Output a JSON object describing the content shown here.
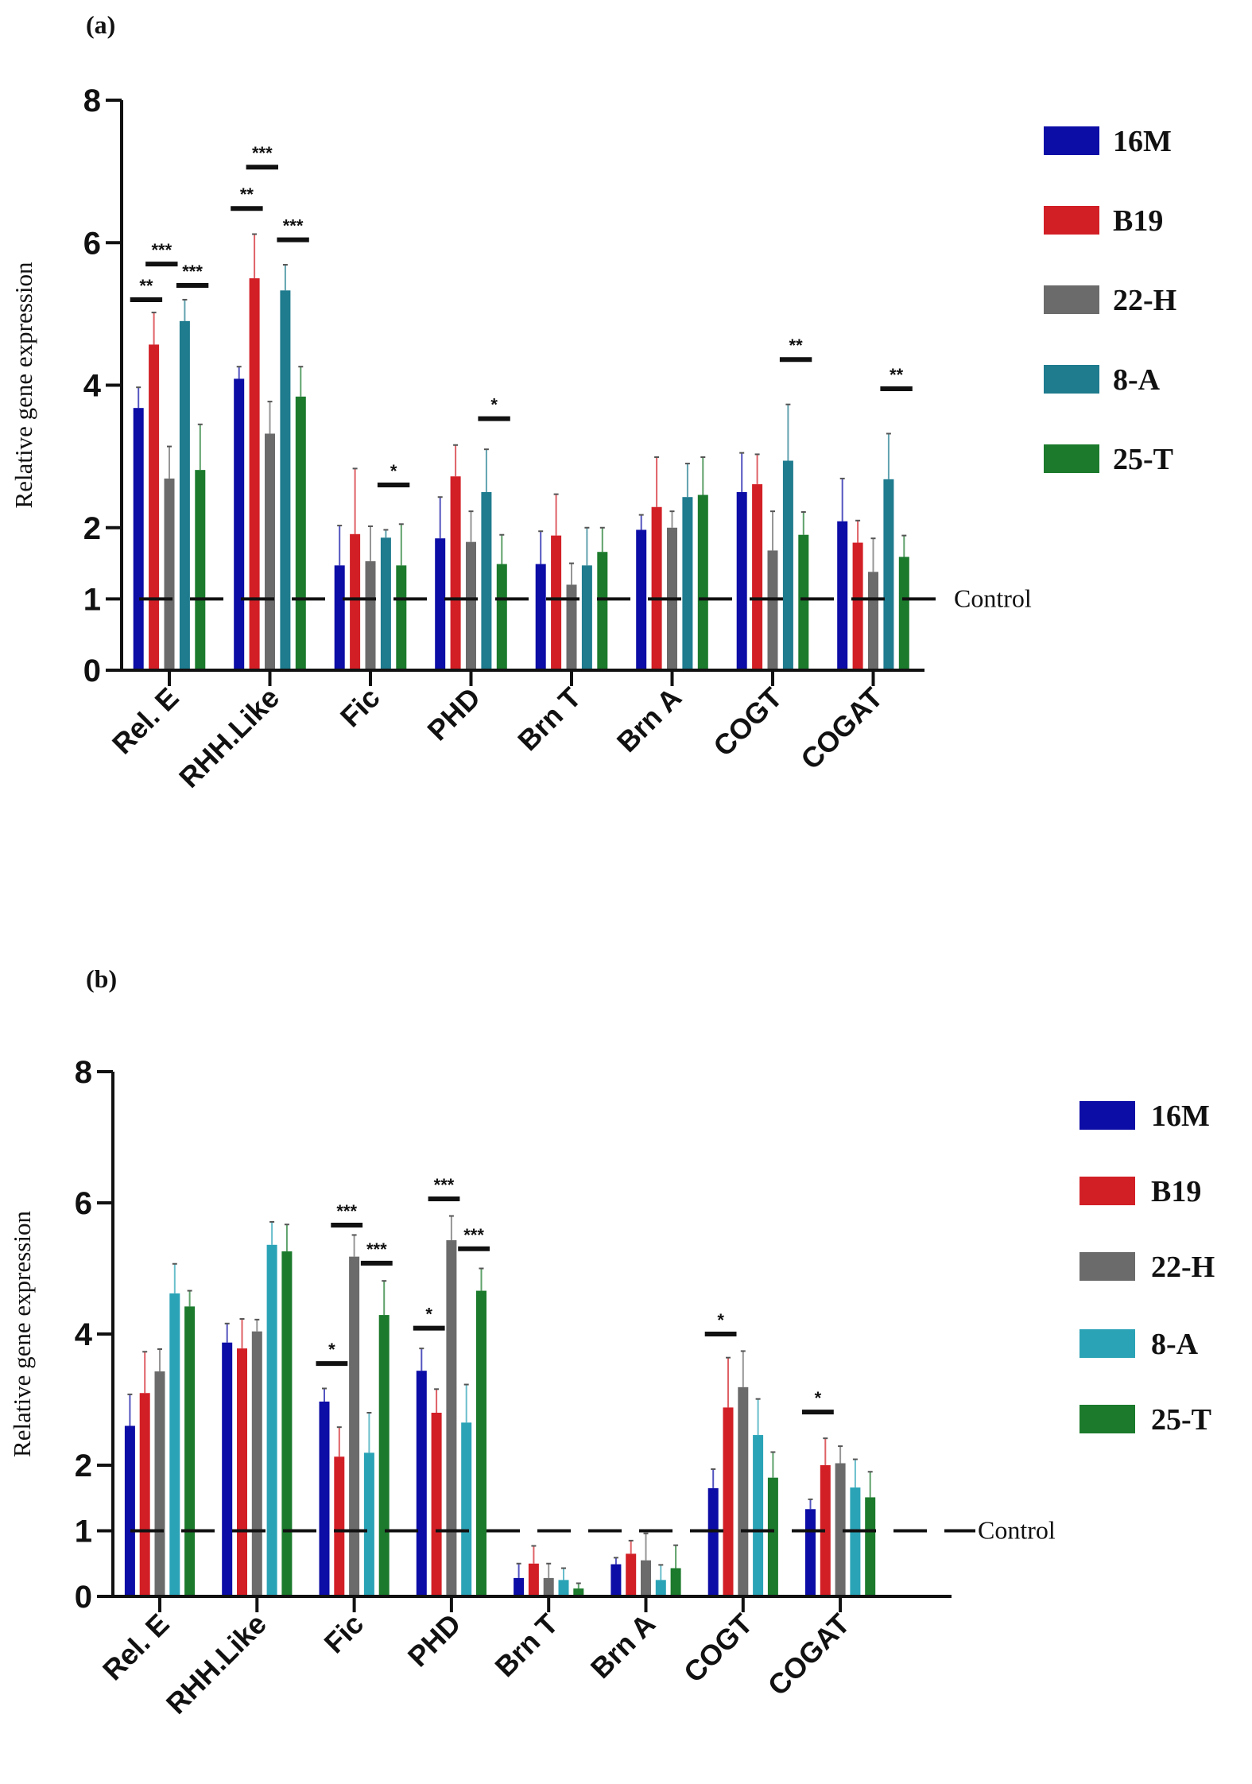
{
  "chart_data": [
    {
      "panel_label": "(a)",
      "type": "bar",
      "ylabel": "Relative gene expression",
      "ylim": [
        0,
        8
      ],
      "yticks": [
        0,
        1,
        2,
        4,
        6,
        8
      ],
      "categories": [
        "Rel. E",
        "RHH.Like",
        "Fic",
        "PHD",
        "Brn T",
        "Brn A",
        "COGT",
        "COGAT"
      ],
      "reference_line": {
        "value": 1,
        "label": "Control",
        "style": "dashed"
      },
      "legend_position": "top-right",
      "series": [
        {
          "name": "16M",
          "color": "#0c0ca6",
          "values": [
            3.68,
            4.09,
            1.47,
            1.85,
            1.49,
            1.97,
            2.5,
            2.09
          ],
          "errors": [
            0.29,
            0.17,
            0.56,
            0.58,
            0.46,
            0.21,
            0.55,
            0.6
          ]
        },
        {
          "name": "B19",
          "color": "#d21f26",
          "values": [
            4.57,
            5.5,
            1.91,
            2.72,
            1.89,
            2.29,
            2.61,
            1.79
          ],
          "errors": [
            0.45,
            0.62,
            0.92,
            0.44,
            0.58,
            0.7,
            0.42,
            0.31
          ]
        },
        {
          "name": "22-H",
          "color": "#6b6b6b",
          "values": [
            2.69,
            3.32,
            1.53,
            1.8,
            1.2,
            2.0,
            1.68,
            1.38
          ],
          "errors": [
            0.45,
            0.45,
            0.49,
            0.43,
            0.3,
            0.23,
            0.55,
            0.47
          ]
        },
        {
          "name": "8-A",
          "color": "#1f7b8e",
          "values": [
            4.9,
            5.33,
            1.86,
            2.5,
            1.47,
            2.43,
            2.94,
            2.68
          ],
          "errors": [
            0.3,
            0.36,
            0.11,
            0.6,
            0.53,
            0.47,
            0.79,
            0.64
          ]
        },
        {
          "name": "25-T",
          "color": "#1b7a2c",
          "values": [
            2.81,
            3.84,
            1.47,
            1.49,
            1.66,
            2.46,
            1.9,
            1.59
          ],
          "errors": [
            0.64,
            0.42,
            0.58,
            0.41,
            0.34,
            0.53,
            0.32,
            0.3
          ]
        }
      ],
      "significance": [
        {
          "category": "Rel. E",
          "label": "**",
          "between": [
            "16M",
            "B19"
          ],
          "y": 5.2
        },
        {
          "category": "Rel. E",
          "label": "***",
          "between": [
            "B19",
            "22-H"
          ],
          "y": 5.7
        },
        {
          "category": "Rel. E",
          "label": "***",
          "between": [
            "8-A",
            "25-T"
          ],
          "y": 5.4
        },
        {
          "category": "RHH.Like",
          "label": "**",
          "between": [
            "16M",
            "B19"
          ],
          "y": 6.48
        },
        {
          "category": "RHH.Like",
          "label": "***",
          "between": [
            "B19",
            "22-H"
          ],
          "y": 7.06
        },
        {
          "category": "RHH.Like",
          "label": "***",
          "between": [
            "8-A",
            "25-T"
          ],
          "y": 6.04
        },
        {
          "category": "Fic",
          "label": "*",
          "between": [
            "8-A",
            "25-T"
          ],
          "y": 2.6
        },
        {
          "category": "PHD",
          "label": "*",
          "between": [
            "8-A",
            "25-T"
          ],
          "y": 3.53
        },
        {
          "category": "COGT",
          "label": "**",
          "between": [
            "8-A",
            "25-T"
          ],
          "y": 4.36
        },
        {
          "category": "COGAT",
          "label": "**",
          "between": [
            "8-A",
            "25-T"
          ],
          "y": 3.95
        }
      ]
    },
    {
      "panel_label": "(b)",
      "type": "bar",
      "ylabel": "Relative gene expression",
      "ylim": [
        0,
        8
      ],
      "yticks": [
        0,
        1,
        2,
        4,
        6,
        8
      ],
      "categories": [
        "Rel. E",
        "RHH.Like",
        "Fic",
        "PHD",
        "Brn T",
        "Brn A",
        "COGT",
        "COGAT"
      ],
      "reference_line": {
        "value": 1,
        "label": "Control",
        "style": "dashed"
      },
      "legend_position": "top-right",
      "series": [
        {
          "name": "16M",
          "color": "#0c0ca6",
          "values": [
            2.6,
            3.87,
            2.97,
            3.44,
            0.28,
            0.49,
            1.65,
            1.33
          ],
          "errors": [
            0.48,
            0.29,
            0.2,
            0.34,
            0.22,
            0.1,
            0.29,
            0.15
          ]
        },
        {
          "name": "B19",
          "color": "#d21f26",
          "values": [
            3.1,
            3.78,
            2.13,
            2.8,
            0.5,
            0.65,
            2.88,
            2.0
          ],
          "errors": [
            0.63,
            0.45,
            0.45,
            0.36,
            0.27,
            0.2,
            0.76,
            0.41
          ]
        },
        {
          "name": "22-H",
          "color": "#6b6b6b",
          "values": [
            3.43,
            4.04,
            5.18,
            5.43,
            0.28,
            0.55,
            3.19,
            2.03
          ],
          "errors": [
            0.34,
            0.18,
            0.33,
            0.37,
            0.22,
            0.41,
            0.55,
            0.26
          ]
        },
        {
          "name": "8-A",
          "color": "#2ba3b6",
          "values": [
            4.62,
            5.36,
            2.19,
            2.65,
            0.25,
            0.25,
            2.46,
            1.66
          ],
          "errors": [
            0.45,
            0.35,
            0.61,
            0.58,
            0.18,
            0.23,
            0.55,
            0.43
          ]
        },
        {
          "name": "25-T",
          "color": "#1b7a2c",
          "values": [
            4.42,
            5.26,
            4.29,
            4.66,
            0.12,
            0.43,
            1.81,
            1.51
          ],
          "errors": [
            0.24,
            0.41,
            0.52,
            0.34,
            0.08,
            0.35,
            0.39,
            0.39
          ]
        }
      ],
      "significance": [
        {
          "category": "Fic",
          "label": "*",
          "between": [
            "16M",
            "B19"
          ],
          "y": 3.55
        },
        {
          "category": "Fic",
          "label": "***",
          "between": [
            "B19",
            "22-H"
          ],
          "y": 5.66
        },
        {
          "category": "Fic",
          "label": "***",
          "between": [
            "8-A",
            "25-T"
          ],
          "y": 5.08
        },
        {
          "category": "PHD",
          "label": "*",
          "between": [
            "16M",
            "B19"
          ],
          "y": 4.09
        },
        {
          "category": "PHD",
          "label": "***",
          "between": [
            "B19",
            "22-H"
          ],
          "y": 6.06
        },
        {
          "category": "PHD",
          "label": "***",
          "between": [
            "8-A",
            "25-T"
          ],
          "y": 5.3
        },
        {
          "category": "COGT",
          "label": "*",
          "between": [
            "16M",
            "B19"
          ],
          "y": 4.0
        },
        {
          "category": "COGAT",
          "label": "*",
          "between": [
            "16M",
            "B19"
          ],
          "y": 2.81
        }
      ]
    }
  ]
}
